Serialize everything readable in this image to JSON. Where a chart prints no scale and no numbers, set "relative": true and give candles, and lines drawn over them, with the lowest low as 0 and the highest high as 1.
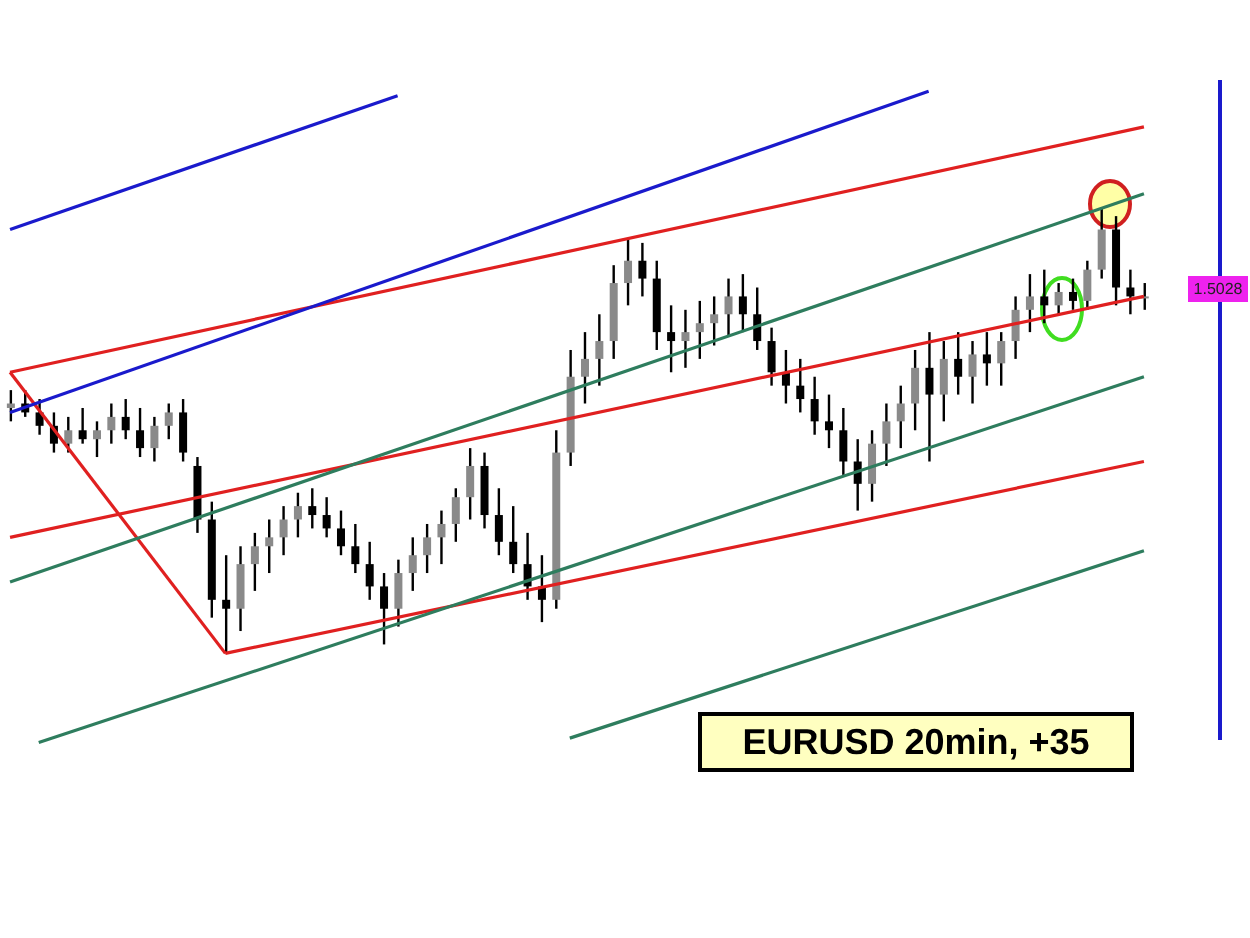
{
  "chart_data": {
    "type": "candlestick",
    "title": "EURUSD 20min, +35",
    "relative": true,
    "annotations": [
      "1.5028"
    ],
    "categories": [
      null,
      null,
      null,
      null,
      null,
      null,
      null,
      null,
      null,
      null,
      null,
      null,
      null,
      null,
      null,
      null,
      null,
      null,
      null,
      null,
      null,
      null,
      null,
      null,
      null,
      null,
      null,
      null,
      null,
      null,
      null,
      null,
      null,
      null,
      null,
      null,
      null,
      null,
      null,
      null,
      null,
      null,
      null,
      null,
      null,
      null,
      null,
      null,
      null,
      null,
      null,
      null,
      null,
      null,
      null,
      null,
      null,
      null,
      null,
      null,
      null,
      null,
      null,
      null,
      null,
      null,
      null,
      null,
      null,
      null,
      null,
      null,
      null,
      null,
      null,
      null,
      null,
      null,
      null,
      null
    ],
    "ohlc": [
      [
        0.55,
        0.59,
        0.52,
        0.56
      ],
      [
        0.56,
        0.59,
        0.53,
        0.54
      ],
      [
        0.54,
        0.57,
        0.49,
        0.51
      ],
      [
        0.51,
        0.54,
        0.45,
        0.47
      ],
      [
        0.47,
        0.53,
        0.45,
        0.5
      ],
      [
        0.5,
        0.55,
        0.47,
        0.48
      ],
      [
        0.48,
        0.52,
        0.44,
        0.5
      ],
      [
        0.5,
        0.56,
        0.47,
        0.53
      ],
      [
        0.53,
        0.57,
        0.48,
        0.5
      ],
      [
        0.5,
        0.55,
        0.44,
        0.46
      ],
      [
        0.46,
        0.53,
        0.43,
        0.51
      ],
      [
        0.51,
        0.56,
        0.48,
        0.54
      ],
      [
        0.54,
        0.57,
        0.43,
        0.45
      ],
      [
        0.42,
        0.44,
        0.27,
        0.3
      ],
      [
        0.3,
        0.34,
        0.08,
        0.12
      ],
      [
        0.12,
        0.22,
        0,
        0.1
      ],
      [
        0.1,
        0.24,
        0.05,
        0.2
      ],
      [
        0.2,
        0.27,
        0.14,
        0.24
      ],
      [
        0.24,
        0.3,
        0.18,
        0.26
      ],
      [
        0.26,
        0.33,
        0.22,
        0.3
      ],
      [
        0.3,
        0.36,
        0.26,
        0.33
      ],
      [
        0.33,
        0.37,
        0.28,
        0.31
      ],
      [
        0.31,
        0.35,
        0.26,
        0.28
      ],
      [
        0.28,
        0.32,
        0.22,
        0.24
      ],
      [
        0.24,
        0.29,
        0.18,
        0.2
      ],
      [
        0.2,
        0.25,
        0.12,
        0.15
      ],
      [
        0.15,
        0.18,
        0.02,
        0.1
      ],
      [
        0.1,
        0.21,
        0.06,
        0.18
      ],
      [
        0.18,
        0.26,
        0.14,
        0.22
      ],
      [
        0.22,
        0.29,
        0.18,
        0.26
      ],
      [
        0.26,
        0.32,
        0.2,
        0.29
      ],
      [
        0.29,
        0.37,
        0.25,
        0.35
      ],
      [
        0.35,
        0.46,
        0.3,
        0.42
      ],
      [
        0.42,
        0.45,
        0.28,
        0.31
      ],
      [
        0.31,
        0.37,
        0.22,
        0.25
      ],
      [
        0.25,
        0.33,
        0.18,
        0.2
      ],
      [
        0.2,
        0.27,
        0.12,
        0.15
      ],
      [
        0.15,
        0.22,
        0.07,
        0.12
      ],
      [
        0.12,
        0.5,
        0.1,
        0.45
      ],
      [
        0.45,
        0.68,
        0.42,
        0.62
      ],
      [
        0.62,
        0.72,
        0.56,
        0.66
      ],
      [
        0.66,
        0.76,
        0.6,
        0.7
      ],
      [
        0.7,
        0.87,
        0.66,
        0.83
      ],
      [
        0.83,
        0.93,
        0.78,
        0.88
      ],
      [
        0.88,
        0.92,
        0.8,
        0.84
      ],
      [
        0.84,
        0.88,
        0.68,
        0.72
      ],
      [
        0.72,
        0.78,
        0.63,
        0.7
      ],
      [
        0.7,
        0.77,
        0.64,
        0.72
      ],
      [
        0.72,
        0.79,
        0.66,
        0.74
      ],
      [
        0.74,
        0.8,
        0.69,
        0.76
      ],
      [
        0.76,
        0.84,
        0.71,
        0.8
      ],
      [
        0.8,
        0.85,
        0.72,
        0.76
      ],
      [
        0.76,
        0.82,
        0.68,
        0.7
      ],
      [
        0.7,
        0.73,
        0.6,
        0.63
      ],
      [
        0.63,
        0.68,
        0.56,
        0.6
      ],
      [
        0.6,
        0.66,
        0.54,
        0.57
      ],
      [
        0.57,
        0.62,
        0.49,
        0.52
      ],
      [
        0.52,
        0.58,
        0.46,
        0.5
      ],
      [
        0.5,
        0.55,
        0.4,
        0.43
      ],
      [
        0.43,
        0.48,
        0.32,
        0.38
      ],
      [
        0.38,
        0.5,
        0.34,
        0.47
      ],
      [
        0.47,
        0.56,
        0.42,
        0.52
      ],
      [
        0.52,
        0.6,
        0.46,
        0.56
      ],
      [
        0.56,
        0.68,
        0.5,
        0.64
      ],
      [
        0.64,
        0.72,
        0.43,
        0.58
      ],
      [
        0.58,
        0.7,
        0.52,
        0.66
      ],
      [
        0.66,
        0.72,
        0.58,
        0.62
      ],
      [
        0.62,
        0.7,
        0.56,
        0.67
      ],
      [
        0.67,
        0.72,
        0.6,
        0.65
      ],
      [
        0.65,
        0.72,
        0.6,
        0.7
      ],
      [
        0.7,
        0.8,
        0.66,
        0.77
      ],
      [
        0.77,
        0.85,
        0.72,
        0.8
      ],
      [
        0.8,
        0.86,
        0.74,
        0.78
      ],
      [
        0.78,
        0.83,
        0.76,
        0.81
      ],
      [
        0.81,
        0.84,
        0.77,
        0.79
      ],
      [
        0.79,
        0.88,
        0.77,
        0.86
      ],
      [
        0.86,
        1,
        0.84,
        0.95
      ],
      [
        0.95,
        0.98,
        0.78,
        0.82
      ],
      [
        0.82,
        0.86,
        0.76,
        0.8
      ],
      [
        0.8,
        0.83,
        0.77,
        0.8
      ]
    ],
    "series": [
      {
        "type": "line",
        "color": "#e02020",
        "values": [
          0.63,
          null,
          null,
          null,
          null,
          null,
          null,
          null,
          null,
          null,
          null,
          null,
          null,
          null,
          null,
          0,
          null,
          null,
          null,
          null,
          null,
          null,
          null,
          null,
          null,
          null,
          null,
          null,
          null,
          null,
          null,
          null,
          null,
          null,
          null,
          null,
          null,
          null,
          null,
          null,
          null,
          null,
          null,
          null,
          null,
          null,
          null,
          null,
          null,
          null,
          null,
          null,
          null,
          null,
          null,
          null,
          null,
          null,
          null,
          null,
          null,
          null,
          null,
          null,
          null,
          null,
          null,
          null,
          null,
          null,
          null,
          null,
          null,
          null,
          null,
          null,
          null,
          null,
          null,
          null
        ]
      },
      {
        "type": "line",
        "color": "#e02020",
        "values": [
          0.63,
          null,
          null,
          null,
          null,
          null,
          null,
          null,
          null,
          null,
          null,
          null,
          null,
          null,
          null,
          null,
          null,
          null,
          null,
          null,
          null,
          null,
          null,
          null,
          null,
          null,
          null,
          null,
          null,
          null,
          null,
          null,
          null,
          null,
          null,
          null,
          null,
          null,
          null,
          null,
          null,
          null,
          null,
          null,
          null,
          null,
          null,
          null,
          null,
          null,
          null,
          null,
          null,
          null,
          null,
          null,
          null,
          null,
          null,
          null,
          null,
          null,
          null,
          null,
          null,
          null,
          null,
          null,
          null,
          null,
          null,
          null,
          null,
          null,
          null,
          null,
          null,
          null,
          null,
          1.18
        ]
      },
      {
        "type": "line",
        "color": "#e02020",
        "values": [
          0.26,
          null,
          null,
          null,
          null,
          null,
          null,
          null,
          null,
          null,
          null,
          null,
          null,
          null,
          null,
          null,
          null,
          null,
          null,
          null,
          null,
          null,
          null,
          null,
          null,
          null,
          null,
          null,
          null,
          null,
          null,
          null,
          null,
          null,
          null,
          null,
          null,
          null,
          null,
          null,
          null,
          null,
          null,
          null,
          null,
          null,
          null,
          null,
          null,
          null,
          null,
          null,
          null,
          null,
          null,
          null,
          null,
          null,
          null,
          null,
          null,
          null,
          null,
          null,
          null,
          null,
          null,
          null,
          null,
          null,
          null,
          null,
          null,
          null,
          null,
          null,
          null,
          null,
          null,
          0.8
        ]
      },
      {
        "type": "line",
        "color": "#e02020",
        "values": [
          null,
          null,
          null,
          null,
          null,
          null,
          null,
          null,
          null,
          null,
          null,
          null,
          null,
          null,
          null,
          0,
          null,
          null,
          null,
          null,
          null,
          null,
          null,
          null,
          null,
          null,
          null,
          null,
          null,
          null,
          null,
          null,
          null,
          null,
          null,
          null,
          null,
          null,
          null,
          null,
          null,
          null,
          null,
          null,
          null,
          null,
          null,
          null,
          null,
          null,
          null,
          null,
          null,
          null,
          null,
          null,
          null,
          null,
          null,
          null,
          null,
          null,
          null,
          null,
          null,
          null,
          null,
          null,
          null,
          null,
          null,
          null,
          null,
          null,
          null,
          null,
          null,
          null,
          null,
          0.43
        ]
      },
      {
        "type": "line",
        "color": "#2e7d5e",
        "values": [
          0.16,
          null,
          null,
          null,
          null,
          null,
          null,
          null,
          null,
          null,
          null,
          null,
          null,
          null,
          null,
          null,
          null,
          null,
          null,
          null,
          null,
          null,
          null,
          null,
          null,
          null,
          null,
          null,
          null,
          null,
          null,
          null,
          null,
          null,
          null,
          null,
          null,
          null,
          null,
          null,
          null,
          null,
          null,
          null,
          null,
          null,
          null,
          null,
          null,
          null,
          null,
          null,
          null,
          null,
          null,
          null,
          null,
          null,
          null,
          null,
          null,
          null,
          null,
          null,
          null,
          null,
          null,
          null,
          null,
          null,
          null,
          null,
          null,
          null,
          null,
          null,
          null,
          null,
          null,
          1.03
        ]
      },
      {
        "type": "line",
        "color": "#2e7d5e",
        "values": [
          null,
          null,
          -0.2,
          null,
          null,
          null,
          null,
          null,
          null,
          null,
          null,
          null,
          null,
          null,
          null,
          null,
          null,
          null,
          null,
          null,
          null,
          null,
          null,
          null,
          null,
          null,
          null,
          null,
          null,
          null,
          null,
          null,
          null,
          null,
          null,
          null,
          null,
          null,
          null,
          null,
          null,
          null,
          null,
          null,
          null,
          null,
          null,
          null,
          null,
          null,
          null,
          null,
          null,
          null,
          null,
          null,
          null,
          null,
          null,
          null,
          null,
          null,
          null,
          null,
          null,
          null,
          null,
          null,
          null,
          null,
          null,
          null,
          null,
          null,
          null,
          null,
          null,
          null,
          null,
          0.62
        ]
      },
      {
        "type": "line",
        "color": "#2e7d5e",
        "values": [
          null,
          null,
          null,
          null,
          null,
          null,
          null,
          null,
          null,
          null,
          null,
          null,
          null,
          null,
          null,
          null,
          null,
          null,
          null,
          null,
          null,
          null,
          null,
          null,
          null,
          null,
          null,
          null,
          null,
          null,
          null,
          null,
          null,
          null,
          null,
          null,
          null,
          null,
          null,
          -0.19,
          null,
          null,
          null,
          null,
          null,
          null,
          null,
          null,
          null,
          null,
          null,
          null,
          null,
          null,
          null,
          null,
          null,
          null,
          null,
          null,
          null,
          null,
          null,
          null,
          null,
          null,
          null,
          null,
          null,
          null,
          null,
          null,
          null,
          null,
          null,
          null,
          null,
          null,
          null,
          0.23
        ]
      },
      {
        "type": "line",
        "color": "#1a1acc",
        "values": [
          0.95,
          null,
          null,
          null,
          null,
          null,
          null,
          null,
          null,
          null,
          null,
          null,
          null,
          null,
          null,
          null,
          null,
          null,
          null,
          null,
          null,
          null,
          null,
          null,
          null,
          null,
          null,
          1.25,
          null,
          null,
          null,
          null,
          null,
          null,
          null,
          null,
          null,
          null,
          null,
          null,
          null,
          null,
          null,
          null,
          null,
          null,
          null,
          null,
          null,
          null,
          null,
          null,
          null,
          null,
          null,
          null,
          null,
          null,
          null,
          null,
          null,
          null,
          null,
          null,
          null,
          null,
          null,
          null,
          null,
          null,
          null,
          null,
          null,
          null,
          null,
          null,
          null,
          null,
          null,
          null
        ]
      },
      {
        "type": "line",
        "color": "#1a1acc",
        "values": [
          0.54,
          null,
          null,
          null,
          null,
          null,
          null,
          null,
          null,
          null,
          null,
          null,
          null,
          null,
          null,
          null,
          null,
          null,
          null,
          null,
          null,
          null,
          null,
          null,
          null,
          null,
          null,
          null,
          null,
          null,
          null,
          null,
          null,
          null,
          null,
          null,
          null,
          null,
          null,
          null,
          null,
          null,
          null,
          null,
          null,
          null,
          null,
          null,
          null,
          null,
          null,
          null,
          null,
          null,
          null,
          null,
          null,
          null,
          null,
          null,
          null,
          null,
          null,
          null,
          1.26,
          null,
          null,
          null,
          null,
          null,
          null,
          null,
          null,
          null,
          null,
          null,
          null,
          null,
          null,
          null
        ]
      }
    ]
  }
}
